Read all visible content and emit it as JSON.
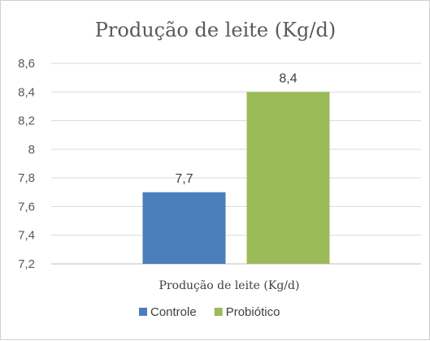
{
  "chart_data": {
    "type": "bar",
    "title": "Produção de leite (Kg/d)",
    "categories": [
      "Produção de leite (Kg/d)"
    ],
    "series": [
      {
        "name": "Controle",
        "values": [
          7.7
        ],
        "color": "#4a7ebb"
      },
      {
        "name": "Probiótico",
        "values": [
          8.4
        ],
        "color": "#9bbb59"
      }
    ],
    "data_labels": [
      "7,7",
      "8,4"
    ],
    "yticks": [
      "7,2",
      "7,4",
      "7,6",
      "7,8",
      "8",
      "8,2",
      "8,4",
      "8,6"
    ],
    "ylim": [
      7.2,
      8.6
    ],
    "grid": true,
    "legend_position": "bottom"
  }
}
